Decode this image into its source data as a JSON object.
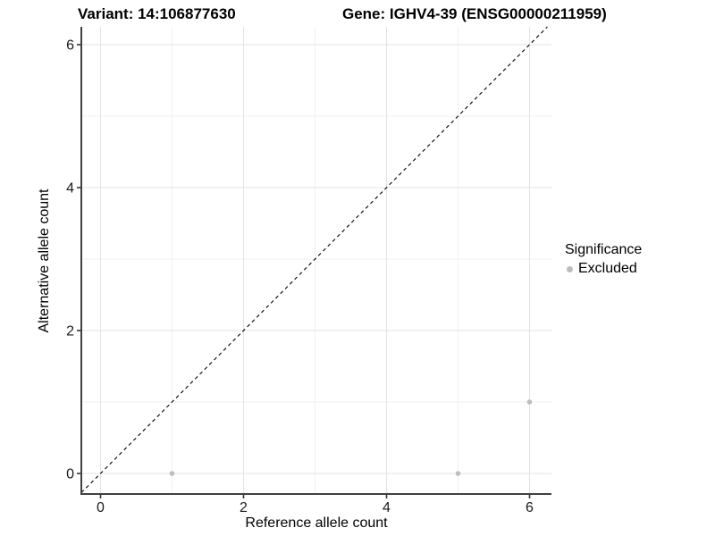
{
  "chart_data": {
    "type": "scatter",
    "title_left": "Variant: 14:106877630",
    "title_right": "Gene: IGHV4-39 (ENSG00000211959)",
    "xlabel": "Reference allele count",
    "ylabel": "Alternative allele count",
    "xlim": [
      -0.27,
      6.31
    ],
    "ylim": [
      -0.29,
      6.25
    ],
    "x_major_ticks": [
      0,
      2,
      4,
      6
    ],
    "y_major_ticks": [
      0,
      2,
      4,
      6
    ],
    "x_minor_gridlines": [
      1,
      3,
      5
    ],
    "y_minor_gridlines": [
      1,
      3,
      5
    ],
    "grid": "on",
    "identity_line": {
      "slope": 1,
      "intercept": 0,
      "style": "dashed",
      "color": "#000000"
    },
    "series": [
      {
        "name": "Excluded",
        "color": "#bdbdbd",
        "points": [
          {
            "x": 1,
            "y": 0
          },
          {
            "x": 5,
            "y": 0
          },
          {
            "x": 6,
            "y": 1
          }
        ]
      }
    ],
    "legend": {
      "title": "Significance",
      "position": "right",
      "items": [
        {
          "label": "Excluded",
          "color": "#bdbdbd",
          "marker": "circle-icon"
        }
      ]
    }
  },
  "colors": {
    "background": "#ffffff",
    "axis_line": "#404040",
    "tick_mark": "#333333",
    "tick_label": "#1a1a1a",
    "grid_major": "#e3e3e3",
    "grid_minor": "#f0f0f0",
    "point": "#bdbdbd",
    "title_text": "#000000"
  }
}
